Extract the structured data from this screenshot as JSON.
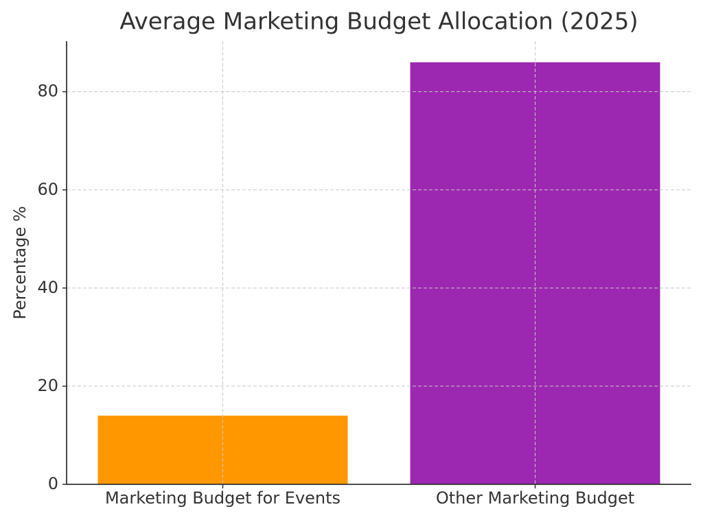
{
  "chart_data": {
    "type": "bar",
    "title": "Average Marketing Budget Allocation (2025)",
    "y_label": "Percentage %",
    "categories": [
      "Marketing Budget for Events",
      "Other Marketing Budget"
    ],
    "values": [
      14,
      86
    ],
    "colors": [
      "#ff9800",
      "#9c27b0"
    ],
    "ylim": [
      0,
      90.3
    ],
    "yticks": [
      0,
      20,
      40,
      60,
      80
    ],
    "grid": true
  }
}
